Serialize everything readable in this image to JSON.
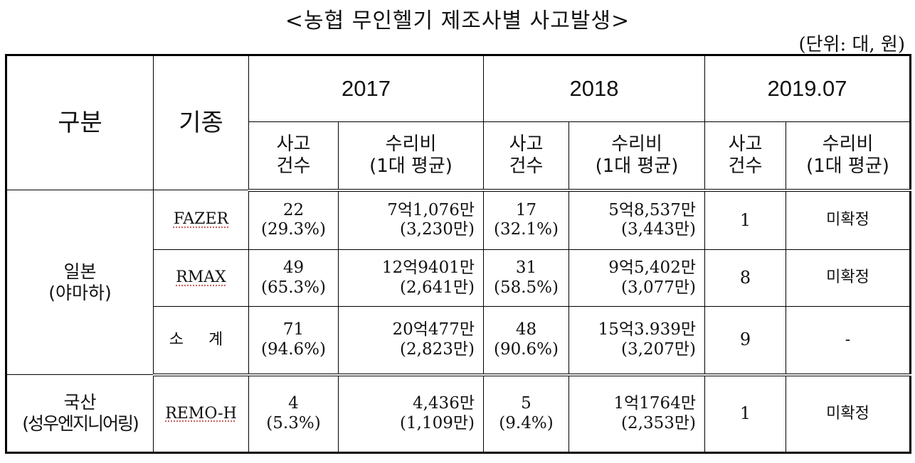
{
  "title": "<농협 무인헬기 제조사별 사고발생>",
  "unit": "(단위: 대, 원)",
  "header": {
    "category": "구분",
    "model": "기종",
    "years": [
      "2017",
      "2018",
      "2019.07"
    ],
    "accidents": [
      "사고",
      "건수"
    ],
    "repair": [
      "수리비",
      "(1대 평균)"
    ]
  },
  "groups": [
    {
      "name": "일본",
      "sub": "(야마하)",
      "rows": [
        {
          "model": "FAZER",
          "y2017": {
            "count": "22",
            "pct": "(29.3%)",
            "cost": "7억1,076만",
            "avg": "(3,230만)"
          },
          "y2018": {
            "count": "17",
            "pct": "(32.1%)",
            "cost": "5억8,537만",
            "avg": "(3,443만)"
          },
          "y2019": {
            "count": "1",
            "cost": "미확정"
          }
        },
        {
          "model": "RMAX",
          "y2017": {
            "count": "49",
            "pct": "(65.3%)",
            "cost": "12억9401만",
            "avg": "(2,641만)"
          },
          "y2018": {
            "count": "31",
            "pct": "(58.5%)",
            "cost": "9억5,402만",
            "avg": "(3,077만)"
          },
          "y2019": {
            "count": "8",
            "cost": "미확정"
          }
        },
        {
          "model": "소 계",
          "y2017": {
            "count": "71",
            "pct": "(94.6%)",
            "cost": "20억477만",
            "avg": "(2,823만)"
          },
          "y2018": {
            "count": "48",
            "pct": "(90.6%)",
            "cost": "15억3.939만",
            "avg": "(3,207만)"
          },
          "y2019": {
            "count": "9",
            "cost": "-"
          }
        }
      ]
    },
    {
      "name": "국산",
      "sub": "(성우엔지니어링)",
      "rows": [
        {
          "model": "REMO-H",
          "y2017": {
            "count": "4",
            "pct": "(5.3%)",
            "cost": "4,436만",
            "avg": "(1,109만)"
          },
          "y2018": {
            "count": "5",
            "pct": "(9.4%)",
            "cost": "1억1764만",
            "avg": "(2,353만)"
          },
          "y2019": {
            "count": "1",
            "cost": "미확정"
          }
        }
      ]
    }
  ]
}
